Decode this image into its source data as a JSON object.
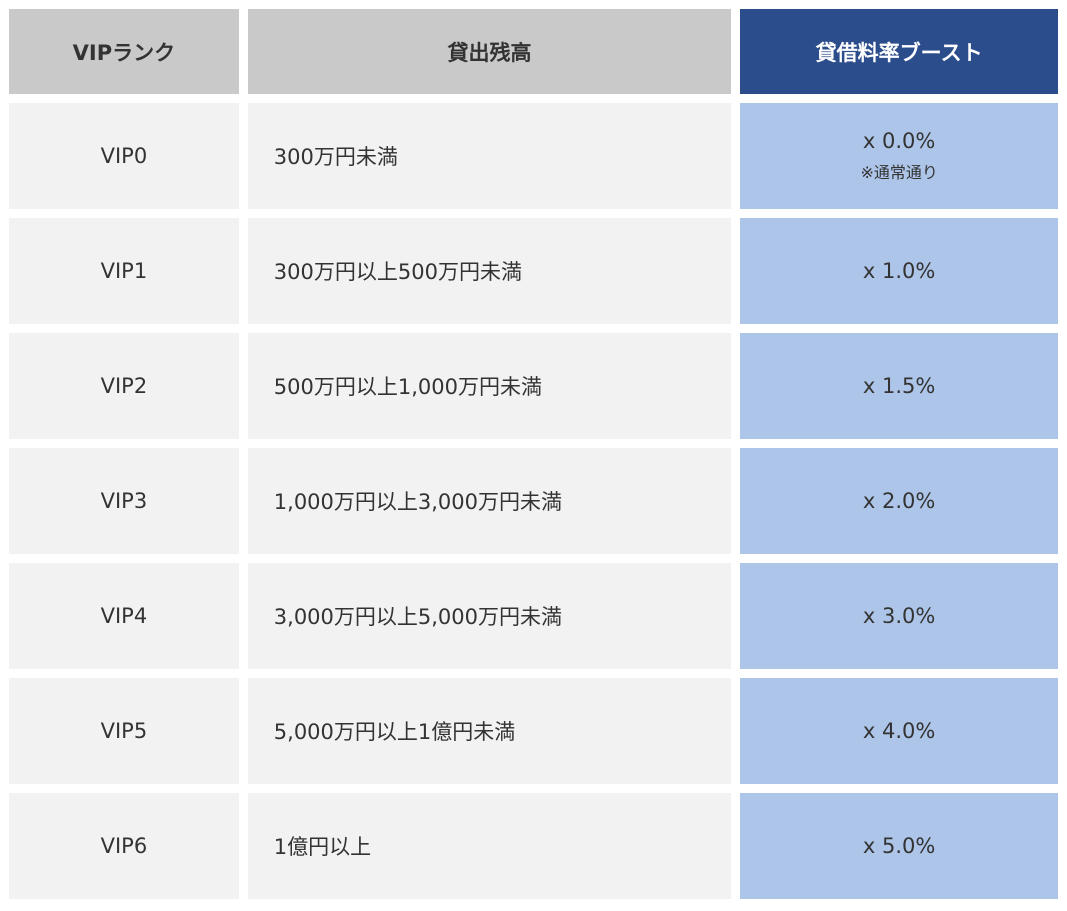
{
  "colors": {
    "header-gray": "#c9c9c9",
    "header-blue": "#2c4d8c",
    "cell-gray": "#f2f2f2",
    "cell-blue": "#adc5e8",
    "text-dark": "#333333",
    "text-light": "#ffffff"
  },
  "table": {
    "headers": {
      "rank": "VIPランク",
      "balance": "貸出残高",
      "boost": "貸借料率ブースト"
    },
    "rows": [
      {
        "rank": "VIP0",
        "balance": "300万円未満",
        "boost": "x 0.0%",
        "note": "※通常通り"
      },
      {
        "rank": "VIP1",
        "balance": "300万円以上500万円未満",
        "boost": "x 1.0%",
        "note": ""
      },
      {
        "rank": "VIP2",
        "balance": "500万円以上1,000万円未満",
        "boost": "x 1.5%",
        "note": ""
      },
      {
        "rank": "VIP3",
        "balance": "1,000万円以上3,000万円未満",
        "boost": "x 2.0%",
        "note": ""
      },
      {
        "rank": "VIP4",
        "balance": "3,000万円以上5,000万円未満",
        "boost": "x 3.0%",
        "note": ""
      },
      {
        "rank": "VIP5",
        "balance": "5,000万円以上1億円未満",
        "boost": "x 4.0%",
        "note": ""
      },
      {
        "rank": "VIP6",
        "balance": "1億円以上",
        "boost": "x 5.0%",
        "note": ""
      }
    ]
  }
}
